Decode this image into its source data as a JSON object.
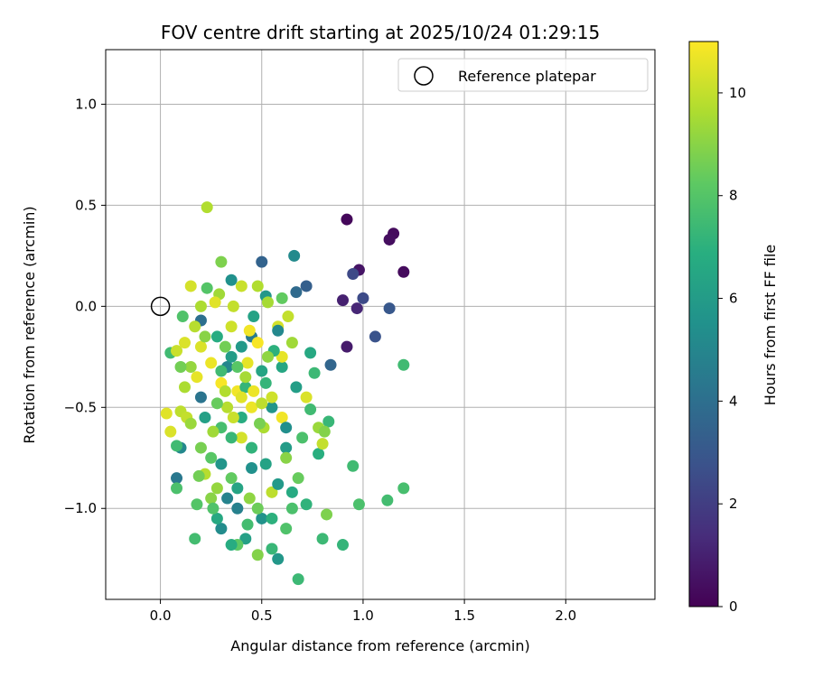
{
  "chart_data": {
    "type": "scatter",
    "title": "FOV centre drift starting at 2025/10/24 01:29:15",
    "xlabel": "Angular distance from reference (arcmin)",
    "ylabel": "Rotation from reference (arcmin)",
    "xlim": [
      -0.27,
      2.44
    ],
    "ylim": [
      -1.45,
      1.27
    ],
    "x_ticks": [
      0.0,
      0.5,
      1.0,
      1.5,
      2.0
    ],
    "x_tick_labels": [
      "0.0",
      "0.5",
      "1.0",
      "1.5",
      "2.0"
    ],
    "y_ticks": [
      -1.0,
      -0.5,
      0.0,
      0.5,
      1.0
    ],
    "y_tick_labels": [
      "−1.0",
      "−0.5",
      "0.0",
      "0.5",
      "1.0"
    ],
    "grid": true,
    "legend": {
      "position": "top-right",
      "entries": [
        "Reference platepar"
      ]
    },
    "reference_point": {
      "x": 0.0,
      "y": 0.0,
      "label": "Reference platepar"
    },
    "colorbar": {
      "label": "Hours from first FF file",
      "range": [
        0,
        11
      ],
      "ticks": [
        0,
        2,
        4,
        6,
        8,
        10
      ],
      "tick_labels": [
        "0",
        "2",
        "4",
        "6",
        "8",
        "10"
      ],
      "colormap": "viridis"
    },
    "points": [
      [
        0.92,
        0.43,
        0.2
      ],
      [
        1.15,
        0.36,
        0.3
      ],
      [
        1.13,
        0.33,
        0.4
      ],
      [
        1.2,
        0.17,
        0.3
      ],
      [
        0.98,
        0.18,
        0.6
      ],
      [
        0.9,
        0.03,
        1.0
      ],
      [
        0.97,
        -0.01,
        1.2
      ],
      [
        0.92,
        -0.2,
        0.8
      ],
      [
        1.0,
        0.04,
        2.5
      ],
      [
        1.06,
        -0.15,
        2.8
      ],
      [
        1.13,
        -0.01,
        3.0
      ],
      [
        0.95,
        0.16,
        2.4
      ],
      [
        0.84,
        -0.29,
        3.6
      ],
      [
        0.72,
        0.1,
        3.3
      ],
      [
        0.67,
        0.07,
        3.8
      ],
      [
        0.5,
        0.22,
        3.5
      ],
      [
        0.66,
        0.25,
        5.2
      ],
      [
        0.2,
        -0.07,
        4.0
      ],
      [
        0.35,
        0.13,
        5.5
      ],
      [
        0.52,
        0.05,
        5.8
      ],
      [
        0.45,
        -0.15,
        4.5
      ],
      [
        0.6,
        -0.3,
        6.5
      ],
      [
        0.33,
        -0.3,
        5.0
      ],
      [
        0.2,
        -0.45,
        4.2
      ],
      [
        0.1,
        -0.7,
        5.1
      ],
      [
        0.08,
        -0.85,
        4.4
      ],
      [
        0.55,
        -0.5,
        5.7
      ],
      [
        0.62,
        -0.7,
        6.0
      ],
      [
        0.45,
        -0.8,
        5.5
      ],
      [
        0.38,
        -1.0,
        4.8
      ],
      [
        0.3,
        -1.1,
        5.3
      ],
      [
        0.42,
        -1.15,
        6.2
      ],
      [
        0.58,
        -1.25,
        5.8
      ],
      [
        0.68,
        -1.35,
        7.4
      ],
      [
        0.5,
        -1.05,
        5.6
      ],
      [
        0.28,
        -1.05,
        6.6
      ],
      [
        0.33,
        -0.95,
        4.9
      ],
      [
        0.4,
        -0.55,
        6.8
      ],
      [
        0.52,
        -0.38,
        7.2
      ],
      [
        0.3,
        -0.6,
        7.7
      ],
      [
        0.25,
        -0.75,
        8.1
      ],
      [
        0.18,
        -0.98,
        8.0
      ],
      [
        0.17,
        -1.15,
        7.6
      ],
      [
        0.38,
        -1.18,
        8.2
      ],
      [
        0.48,
        -1.23,
        8.9
      ],
      [
        0.55,
        -1.2,
        7.3
      ],
      [
        0.62,
        -1.1,
        7.9
      ],
      [
        0.72,
        -0.98,
        7.1
      ],
      [
        0.82,
        -1.03,
        8.8
      ],
      [
        0.8,
        -1.15,
        7.4
      ],
      [
        0.9,
        -1.18,
        7.2
      ],
      [
        0.98,
        -0.98,
        7.8
      ],
      [
        0.95,
        -0.79,
        7.5
      ],
      [
        1.12,
        -0.96,
        7.6
      ],
      [
        1.2,
        -0.9,
        7.7
      ],
      [
        1.2,
        -0.29,
        7.5
      ],
      [
        0.83,
        -0.57,
        7.3
      ],
      [
        0.78,
        -0.73,
        6.9
      ],
      [
        0.74,
        -0.51,
        7.5
      ],
      [
        0.76,
        -0.33,
        7.4
      ],
      [
        0.74,
        -0.23,
        6.6
      ],
      [
        0.6,
        0.04,
        8.3
      ],
      [
        0.3,
        0.22,
        8.8
      ],
      [
        0.23,
        0.49,
        9.7
      ],
      [
        0.23,
        0.09,
        8.0
      ],
      [
        0.29,
        0.06,
        9.4
      ],
      [
        0.15,
        0.1,
        10.3
      ],
      [
        0.11,
        -0.05,
        7.9
      ],
      [
        0.05,
        -0.23,
        7.5
      ],
      [
        0.08,
        -0.22,
        10.1
      ],
      [
        0.12,
        -0.4,
        9.6
      ],
      [
        0.03,
        -0.53,
        10.5
      ],
      [
        0.05,
        -0.62,
        10.4
      ],
      [
        0.1,
        -0.52,
        9.9
      ],
      [
        0.13,
        -0.55,
        10.0
      ],
      [
        0.08,
        -0.69,
        7.5
      ],
      [
        0.08,
        -0.9,
        7.8
      ],
      [
        0.15,
        -0.58,
        9.3
      ],
      [
        0.2,
        -0.7,
        8.7
      ],
      [
        0.22,
        -0.83,
        9.8
      ],
      [
        0.25,
        -0.95,
        9.0
      ],
      [
        0.19,
        -0.84,
        8.6
      ],
      [
        0.28,
        -0.9,
        9.2
      ],
      [
        0.35,
        -0.85,
        8.3
      ],
      [
        0.44,
        -0.95,
        9.1
      ],
      [
        0.55,
        -0.92,
        9.9
      ],
      [
        0.51,
        -0.6,
        9.6
      ],
      [
        0.45,
        -0.5,
        10.7
      ],
      [
        0.38,
        -0.42,
        10.8
      ],
      [
        0.43,
        -0.28,
        10.6
      ],
      [
        0.48,
        -0.18,
        10.9
      ],
      [
        0.35,
        -0.1,
        10.2
      ],
      [
        0.27,
        0.02,
        10.5
      ],
      [
        0.4,
        0.1,
        10.1
      ],
      [
        0.48,
        0.1,
        9.7
      ],
      [
        0.53,
        0.02,
        9.5
      ],
      [
        0.58,
        -0.1,
        10.3
      ],
      [
        0.63,
        -0.05,
        10.0
      ],
      [
        0.65,
        -0.18,
        9.4
      ],
      [
        0.6,
        -0.25,
        10.6
      ],
      [
        0.55,
        -0.45,
        10.2
      ],
      [
        0.6,
        -0.55,
        10.8
      ],
      [
        0.62,
        -0.75,
        9.0
      ],
      [
        0.68,
        -0.85,
        8.4
      ],
      [
        0.7,
        -0.65,
        7.8
      ],
      [
        0.72,
        -0.45,
        10.4
      ],
      [
        0.78,
        -0.6,
        9.3
      ],
      [
        0.8,
        -0.68,
        10.0
      ],
      [
        0.81,
        -0.62,
        8.9
      ],
      [
        0.4,
        -0.65,
        10.3
      ],
      [
        0.33,
        -0.5,
        9.8
      ],
      [
        0.3,
        -0.38,
        10.9
      ],
      [
        0.25,
        -0.28,
        10.7
      ],
      [
        0.2,
        -0.2,
        10.4
      ],
      [
        0.15,
        -0.3,
        9.2
      ],
      [
        0.18,
        -0.35,
        10.6
      ],
      [
        0.22,
        -0.15,
        9.0
      ],
      [
        0.32,
        -0.2,
        8.6
      ],
      [
        0.38,
        -0.3,
        8.1
      ],
      [
        0.42,
        -0.4,
        7.2
      ],
      [
        0.5,
        -0.32,
        6.4
      ],
      [
        0.56,
        -0.22,
        7.0
      ],
      [
        0.35,
        -0.65,
        7.3
      ],
      [
        0.28,
        -0.48,
        8.4
      ],
      [
        0.45,
        -0.7,
        7.1
      ],
      [
        0.52,
        -0.78,
        6.3
      ],
      [
        0.58,
        -0.88,
        5.9
      ],
      [
        0.65,
        -0.92,
        6.7
      ],
      [
        0.62,
        -0.6,
        5.4
      ],
      [
        0.67,
        -0.4,
        6.1
      ],
      [
        0.58,
        -0.12,
        5.1
      ],
      [
        0.46,
        -0.05,
        6.3
      ],
      [
        0.4,
        -0.2,
        5.9
      ],
      [
        0.28,
        -0.15,
        6.8
      ],
      [
        0.22,
        -0.55,
        6.2
      ],
      [
        0.3,
        -0.78,
        5.7
      ],
      [
        0.38,
        -0.9,
        6.4
      ],
      [
        0.43,
        -1.08,
        7.6
      ],
      [
        0.35,
        -1.18,
        6.8
      ],
      [
        0.26,
        -1.0,
        7.9
      ],
      [
        0.48,
        -1.0,
        8.5
      ],
      [
        0.55,
        -1.05,
        7.0
      ],
      [
        0.65,
        -1.0,
        7.8
      ],
      [
        0.42,
        -0.35,
        9.5
      ],
      [
        0.4,
        -0.45,
        10.5
      ],
      [
        0.46,
        -0.42,
        10.7
      ],
      [
        0.5,
        -0.48,
        9.9
      ],
      [
        0.36,
        -0.55,
        10.1
      ],
      [
        0.32,
        -0.42,
        9.7
      ],
      [
        0.26,
        -0.62,
        9.4
      ],
      [
        0.49,
        -0.58,
        8.7
      ],
      [
        0.53,
        -0.25,
        9.1
      ],
      [
        0.44,
        -0.12,
        10.8
      ],
      [
        0.36,
        0.0,
        10.0
      ],
      [
        0.2,
        0.0,
        9.6
      ],
      [
        0.17,
        -0.1,
        9.8
      ],
      [
        0.12,
        -0.18,
        10.4
      ],
      [
        0.1,
        -0.3,
        8.6
      ],
      [
        0.3,
        -0.32,
        7.5
      ],
      [
        0.35,
        -0.25,
        6.0
      ]
    ]
  }
}
